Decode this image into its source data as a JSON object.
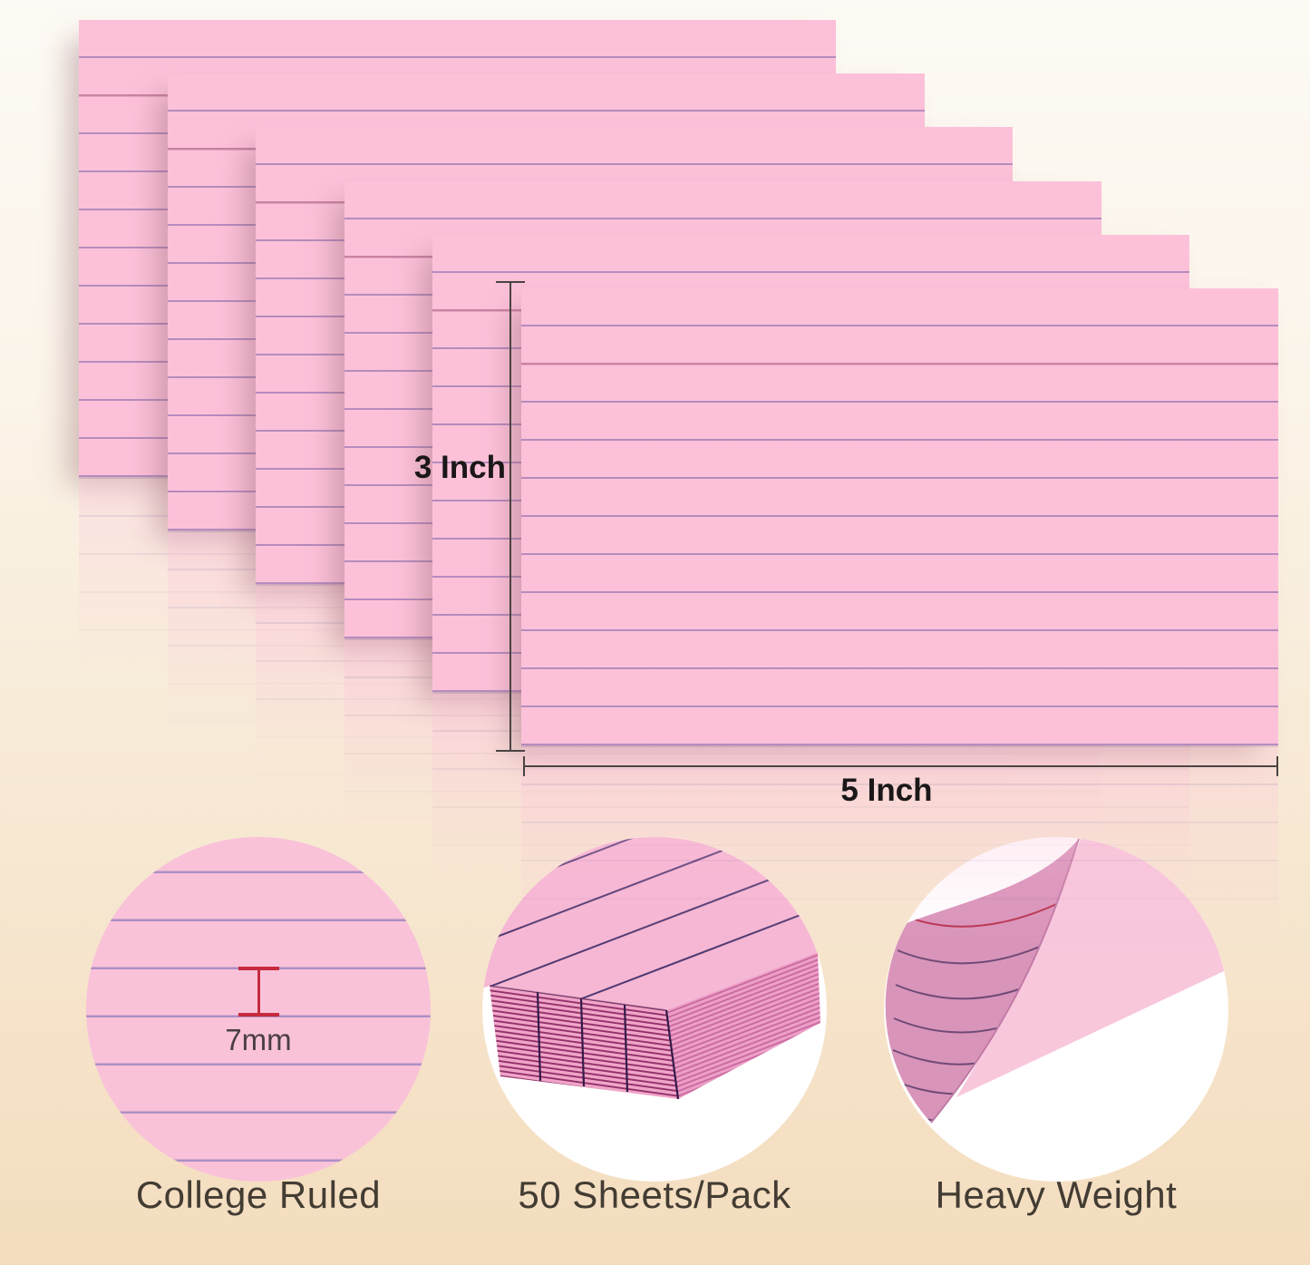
{
  "dimensions": {
    "height_label": "3 Inch",
    "width_label": "5 Inch"
  },
  "cards": {
    "count": 6,
    "color": "#fcc1d9",
    "header_line_color": "rgba(201,131,162,0.95)",
    "rule_line_color": "rgba(158,122,180,0.75)"
  },
  "features": [
    {
      "id": "college-ruled",
      "label": "College Ruled",
      "detail": "7mm"
    },
    {
      "id": "sheets-per-pack",
      "label": "50 Sheets/Pack"
    },
    {
      "id": "heavy-weight",
      "label": "Heavy Weight"
    }
  ],
  "colors": {
    "background_top": "#fdfaf5",
    "background_bottom": "#f4ddbe",
    "dimension_line": "#4a4441",
    "dimension_text": "#1b1718",
    "feature_label_text": "#433c33",
    "accent_red": "#c62a3e",
    "circle_pink": "#f9c2d9",
    "circle_rule_line": "#ad8fc4",
    "detail_text": "#4b3e44"
  }
}
